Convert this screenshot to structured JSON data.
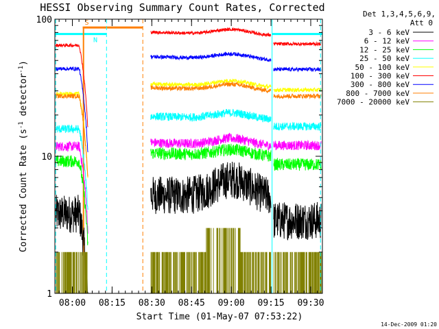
{
  "chart_data": {
    "type": "line",
    "title": "HESSI Observing Summary Count Rates, Corrected",
    "xlabel": "Start Time (01-May-07 07:53:22)",
    "ylabel": "Corrected Count Rate (s",
    "ylabel_sup1": "-1",
    "ylabel_mid": " detector",
    "ylabel_sup2": "-1",
    "ylabel_end": ")",
    "yscale": "log",
    "ylim": [
      1,
      100
    ],
    "xlim_minutes": [
      0,
      101
    ],
    "x_ticks": [
      {
        "label": "08:00",
        "minute": 6.6
      },
      {
        "label": "08:15",
        "minute": 21.6
      },
      {
        "label": "08:30",
        "minute": 36.6
      },
      {
        "label": "08:45",
        "minute": 51.6
      },
      {
        "label": "09:00",
        "minute": 66.6
      },
      {
        "label": "09:15",
        "minute": 81.6
      },
      {
        "label": "09:30",
        "minute": 96.6
      }
    ],
    "y_ticks": [
      {
        "label": "1",
        "value": 1
      },
      {
        "label": "10",
        "value": 10
      },
      {
        "label": "100",
        "value": 100
      }
    ],
    "legend_header": [
      "Det 1,3,4,5,6,9,",
      "Att 0"
    ],
    "legend_position": "right",
    "flag_bars": [
      {
        "label": "S",
        "color": "#ff7f00",
        "start": 10.5,
        "end": 33.2,
        "value": 87
      },
      {
        "label": "N",
        "color": "#00ffff",
        "start": 0,
        "end": 19.5,
        "value": 78
      },
      {
        "label": "",
        "color": "#00ffff",
        "start": 82.0,
        "end": 101,
        "value": 78
      }
    ],
    "vertical_markers": [
      {
        "color": "#00ffff",
        "minute": 0.3,
        "style": "dash"
      },
      {
        "color": "#00ffff",
        "minute": 19.5,
        "style": "dash"
      },
      {
        "color": "#ff7f00",
        "minute": 33.2,
        "style": "dash"
      },
      {
        "color": "#00ffff",
        "minute": 82.0,
        "style": "solid"
      },
      {
        "color": "#00ffff",
        "minute": 100.3,
        "style": "dash"
      }
    ],
    "gaps": [
      [
        12.5,
        36.2
      ],
      [
        81.6,
        82.6
      ]
    ],
    "series": [
      {
        "name": "3 - 6 keV",
        "color": "#000000",
        "base_pre": 3.8,
        "base_mid": 5.2,
        "base_post": 3.4,
        "noise": 0.14,
        "bump": 0.35
      },
      {
        "name": "6 - 12 keV",
        "color": "#ff00ff",
        "base_pre": 11.8,
        "base_mid": 12.5,
        "base_post": 12.0,
        "noise": 0.035,
        "bump": 0.12
      },
      {
        "name": "12 - 25 keV",
        "color": "#00ff00",
        "base_pre": 9.2,
        "base_mid": 10.5,
        "base_post": 8.7,
        "noise": 0.045,
        "bump": 0.1
      },
      {
        "name": "25 - 50 keV",
        "color": "#00ffff",
        "base_pre": 15.8,
        "base_mid": 19.5,
        "base_post": 16.5,
        "noise": 0.03,
        "bump": 0.1
      },
      {
        "name": "50 - 100 keV",
        "color": "#ffff00",
        "base_pre": 28.5,
        "base_mid": 33.5,
        "base_post": 30.5,
        "noise": 0.015,
        "bump": 0.1
      },
      {
        "name": "100 - 300 keV",
        "color": "#ff0000",
        "base_pre": 64.5,
        "base_mid": 80.0,
        "base_post": 66.0,
        "noise": 0.012,
        "bump": 0.09
      },
      {
        "name": "300 - 800 keV",
        "color": "#0000ff",
        "base_pre": 43.5,
        "base_mid": 53.0,
        "base_post": 43.0,
        "noise": 0.014,
        "bump": 0.09
      },
      {
        "name": "800 - 7000 keV",
        "color": "#ff7f00",
        "base_pre": 27.5,
        "base_mid": 31.5,
        "base_post": 27.5,
        "noise": 0.016,
        "bump": 0.1
      },
      {
        "name": "7000 - 20000 keV",
        "color": "#808000",
        "base_pre": 1.6,
        "base_mid": 1.6,
        "base_post": 1.6,
        "noise": 0,
        "bump": 0
      }
    ]
  },
  "timestamp": "14-Dec-2009 01:20"
}
